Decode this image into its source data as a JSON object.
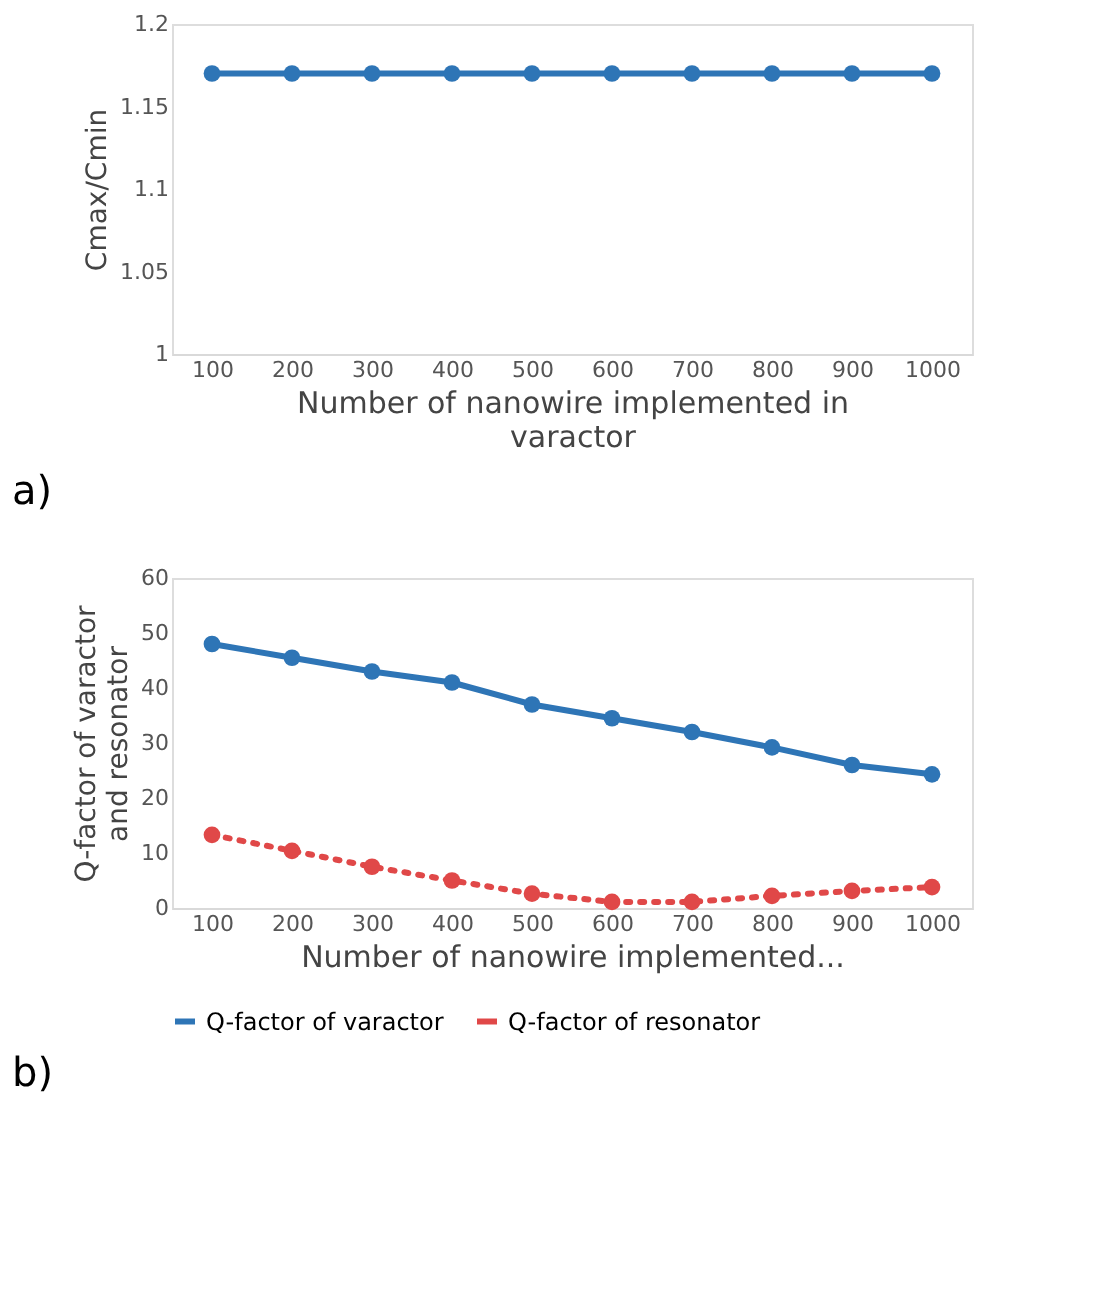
{
  "chart_data": [
    {
      "type": "line",
      "categories": [
        "100",
        "200",
        "300",
        "400",
        "500",
        "600",
        "700",
        "800",
        "900",
        "1000"
      ],
      "xlabel": "Number of nanowire implemented in varactor",
      "ylabel": "Cmax/Cmin",
      "ylim": [
        1,
        1.2
      ],
      "yticks": [
        1,
        1.05,
        1.1,
        1.15,
        1.2
      ],
      "grid": false,
      "legend": false,
      "marker": "circle",
      "annotations": [
        "a)"
      ],
      "series": [
        {
          "color": "#2e75b6",
          "line_style": "solid",
          "values": [
            1.17,
            1.17,
            1.17,
            1.17,
            1.17,
            1.17,
            1.17,
            1.17,
            1.17,
            1.17
          ]
        }
      ]
    },
    {
      "type": "line",
      "categories": [
        "100",
        "200",
        "300",
        "400",
        "500",
        "600",
        "700",
        "800",
        "900",
        "1000"
      ],
      "xlabel": "Number of nanowire implemented...",
      "ylabel": "Q-factor of varactor and resonator",
      "ylim": [
        0,
        60
      ],
      "yticks": [
        0,
        10,
        20,
        30,
        40,
        50,
        60
      ],
      "grid": false,
      "legend": "bottom",
      "marker": "circle",
      "annotations": [
        "b)"
      ],
      "series": [
        {
          "name": "Q-factor of varactor",
          "color": "#2e75b6",
          "line_style": "solid",
          "values": [
            48,
            45.5,
            43,
            41,
            37,
            34.5,
            32,
            29.2,
            26,
            24.3
          ]
        },
        {
          "name": "Q-factor of resonator",
          "color": "#e04848",
          "line_style": "dotted",
          "values": [
            13.3,
            10.4,
            7.5,
            5,
            2.6,
            1.1,
            1.1,
            2.2,
            3.1,
            3.8
          ]
        }
      ]
    }
  ]
}
